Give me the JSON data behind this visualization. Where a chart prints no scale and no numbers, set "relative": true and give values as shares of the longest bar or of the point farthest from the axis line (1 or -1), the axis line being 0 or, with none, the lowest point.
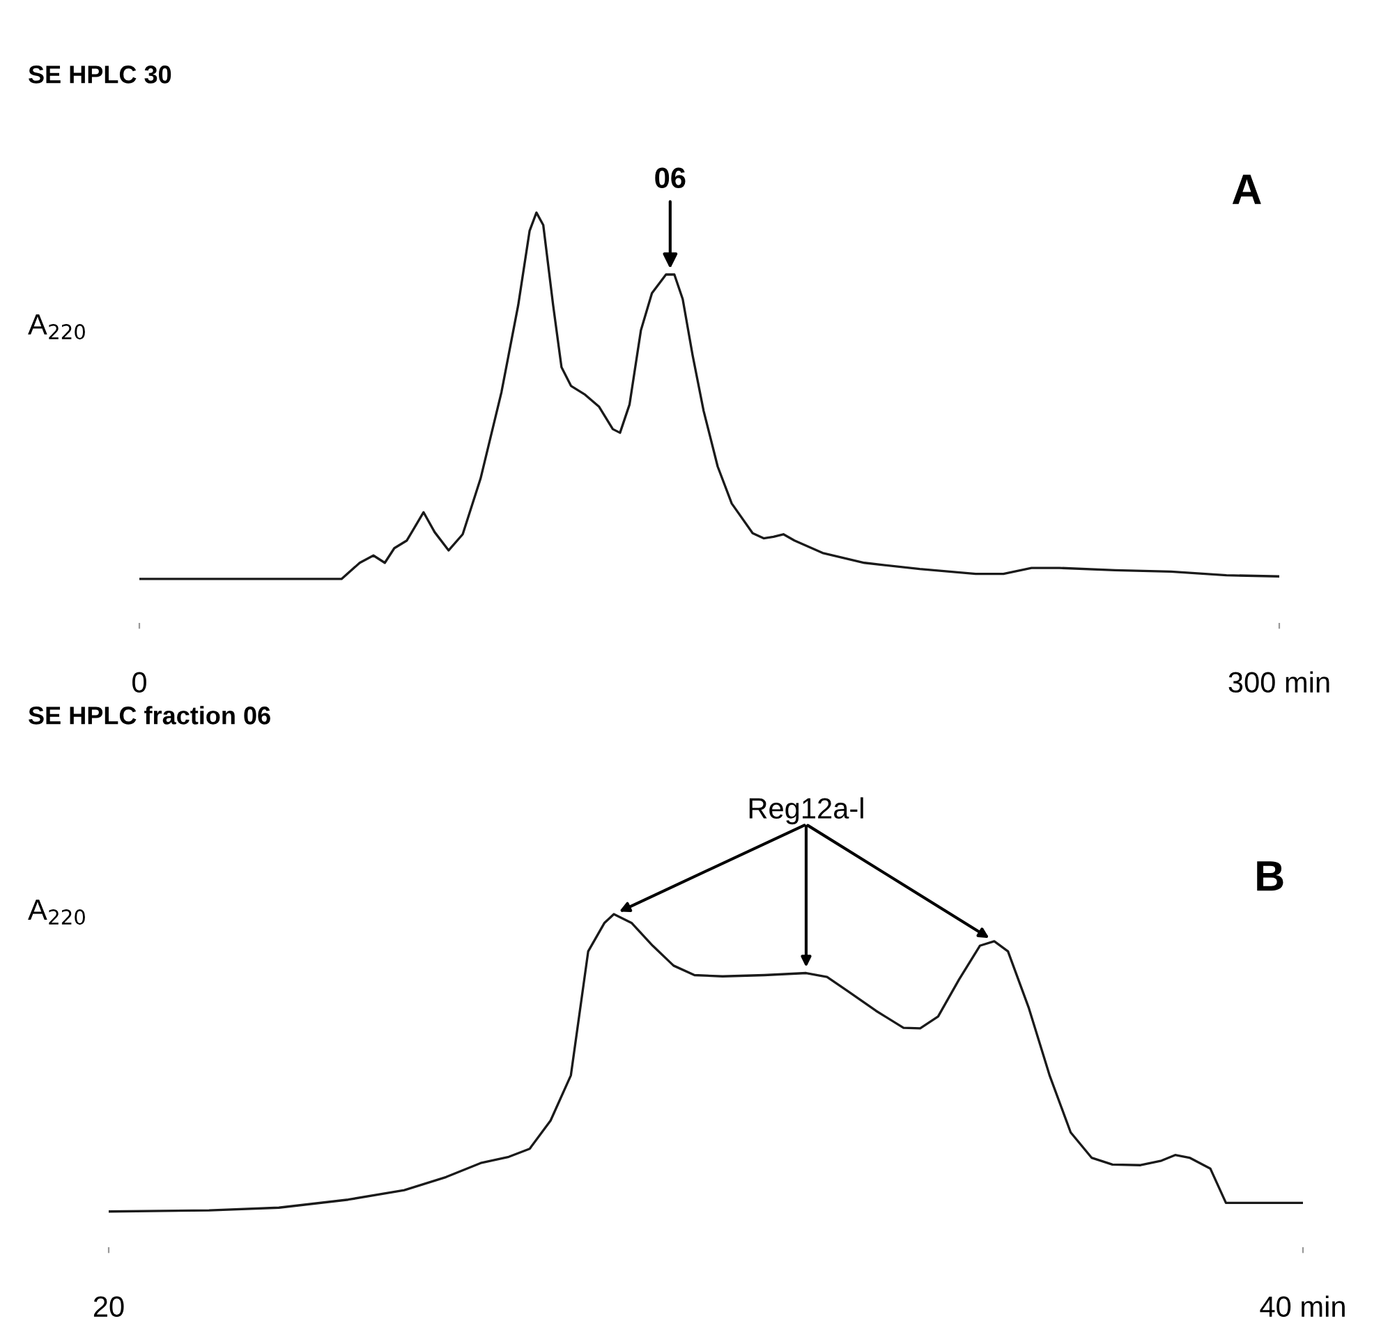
{
  "chart_data": [
    {
      "type": "line",
      "title": "SE HPLC 30",
      "ylabel": "A$_{220}$",
      "relative": true,
      "xlim": [
        0,
        300
      ],
      "xticks": [
        {
          "value": 0,
          "label": "0"
        },
        {
          "value": 300,
          "label": "300 min"
        }
      ],
      "series": [
        {
          "color": "#1a1a1a",
          "x": [
            0,
            53.2,
            58.0,
            61.6,
            64.6,
            67.1,
            70.4,
            74.8,
            77.7,
            81.4,
            85.1,
            89.8,
            95.3,
            99.7,
            102.7,
            104.5,
            106.3,
            108.9,
            111.1,
            113.6,
            117.3,
            121.0,
            124.6,
            126.5,
            129.0,
            132.0,
            134.9,
            138.6,
            140.8,
            143.0,
            145.6,
            148.5,
            152.2,
            155.9,
            161.4,
            164.3,
            166.9,
            169.5,
            172.4,
            179.8,
            190.8,
            205.4,
            220.1,
            227.4,
            234.8,
            242.1,
            256.8,
            271.5,
            286.1,
            300
          ],
          "values": [
            0,
            0,
            0.044,
            0.064,
            0.044,
            0.084,
            0.105,
            0.182,
            0.128,
            0.078,
            0.122,
            0.274,
            0.51,
            0.747,
            0.95,
            1,
            0.966,
            0.747,
            0.578,
            0.527,
            0.503,
            0.47,
            0.409,
            0.399,
            0.476,
            0.679,
            0.78,
            0.831,
            0.831,
            0.764,
            0.611,
            0.459,
            0.307,
            0.206,
            0.125,
            0.111,
            0.115,
            0.122,
            0.105,
            0.071,
            0.044,
            0.027,
            0.014,
            0.014,
            0.03,
            0.03,
            0.024,
            0.02,
            0.01,
            0.007
          ]
        }
      ],
      "annotations": [
        {
          "text": "06",
          "x": 139.7,
          "y": 0.831
        },
        "A"
      ],
      "grid": false,
      "legend": false
    },
    {
      "type": "line",
      "title": "SE HPLC fraction 06",
      "ylabel": "A$_{220}$",
      "relative": true,
      "xlim": [
        20,
        40
      ],
      "xticks": [
        {
          "value": 20,
          "label": "20"
        },
        {
          "value": 40,
          "label": "40 min"
        }
      ],
      "series": [
        {
          "color": "#1a1a1a",
          "x": [
            20.0,
            21.68,
            22.85,
            24.01,
            24.95,
            25.65,
            26.23,
            26.7,
            27.05,
            27.4,
            27.74,
            28.03,
            28.3,
            28.46,
            28.76,
            29.11,
            29.46,
            29.81,
            30.28,
            30.98,
            31.68,
            32.03,
            32.38,
            32.85,
            33.31,
            33.59,
            33.89,
            34.24,
            34.59,
            34.83,
            35.06,
            35.41,
            35.76,
            36.11,
            36.46,
            36.81,
            37.28,
            37.63,
            37.86,
            38.1,
            38.45,
            38.71,
            40.0
          ],
          "values": [
            0,
            0.004,
            0.013,
            0.04,
            0.072,
            0.116,
            0.163,
            0.184,
            0.211,
            0.306,
            0.458,
            0.875,
            0.97,
            1,
            0.97,
            0.894,
            0.827,
            0.795,
            0.791,
            0.795,
            0.802,
            0.789,
            0.741,
            0.675,
            0.618,
            0.616,
            0.656,
            0.78,
            0.894,
            0.909,
            0.875,
            0.684,
            0.456,
            0.266,
            0.181,
            0.158,
            0.156,
            0.171,
            0.19,
            0.181,
            0.144,
            0.029,
            0.029
          ]
        }
      ],
      "annotations": [
        {
          "text": "Reg12a-l",
          "x": 31.68,
          "y": 0.802
        },
        "B"
      ],
      "grid": false,
      "legend": false
    }
  ]
}
